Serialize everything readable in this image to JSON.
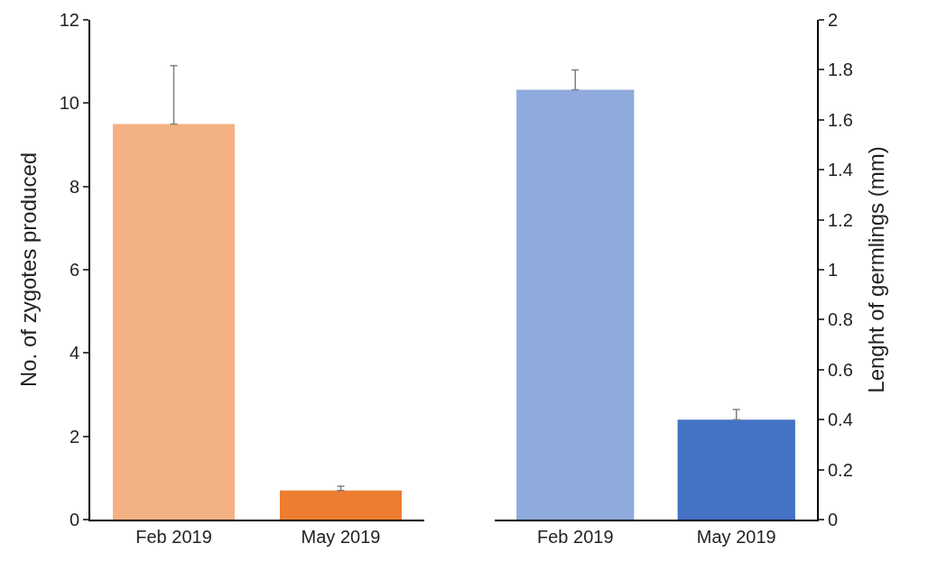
{
  "chart_data": [
    {
      "type": "bar",
      "ylabel": "No. of zygotes produced",
      "categories": [
        "Feb 2019",
        "May 2019"
      ],
      "values": [
        9.5,
        0.7
      ],
      "colors": [
        "#f4b183",
        "#ed7d31"
      ],
      "errors": [
        1.4,
        0.1
      ],
      "ylim": [
        0,
        12
      ],
      "yticks": [
        0,
        2,
        4,
        6,
        8,
        10,
        12
      ]
    },
    {
      "type": "bar",
      "y2label": "Lenght of germlings (mm)",
      "categories": [
        "Feb 2019",
        "May 2019"
      ],
      "series": [
        {
          "axis": "y2",
          "values": [
            1.72,
            0.4
          ],
          "colors": [
            "#8faadc",
            "#4472c4"
          ],
          "errors": [
            0.08,
            0.04
          ]
        }
      ],
      "y2lim": [
        0,
        2
      ],
      "y2ticks": [
        0,
        0.2,
        0.4,
        0.6,
        0.8,
        1,
        1.2,
        1.4,
        1.6,
        1.8,
        2
      ]
    }
  ]
}
